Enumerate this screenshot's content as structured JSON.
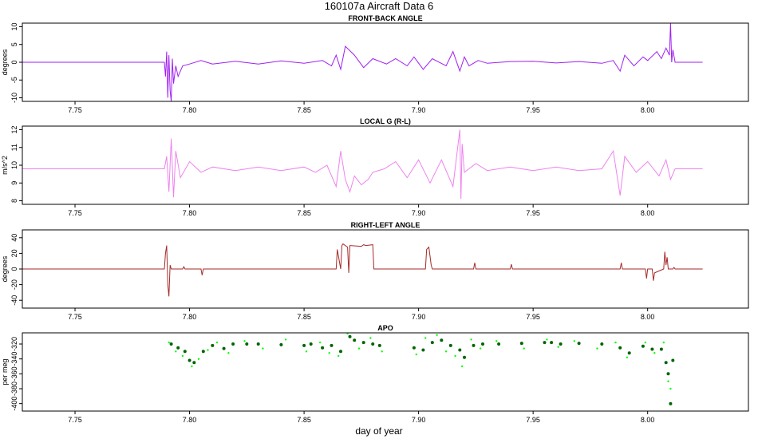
{
  "figure": {
    "title": "160107a   Aircraft Data 6",
    "xlabel": "day of year"
  },
  "chart_data": [
    {
      "type": "line",
      "title": "FRONT-BACK ANGLE",
      "ylabel": "degrees",
      "xlim": [
        7.727,
        8.044
      ],
      "ylim": [
        -11,
        11
      ],
      "xticks": [
        7.75,
        7.8,
        7.85,
        7.9,
        7.95,
        8.0
      ],
      "xtick_labels": [
        "7.75",
        "7.80",
        "7.85",
        "7.90",
        "7.95",
        "8.00"
      ],
      "yticks": [
        -10,
        -5,
        0,
        5,
        10
      ],
      "ytick_labels": [
        "-10",
        "-5",
        "0",
        "5",
        "10"
      ],
      "color": "#a020f0",
      "series": [
        {
          "x": [
            7.727,
            7.789,
            7.7895,
            7.79,
            7.7905,
            7.791,
            7.7915,
            7.792,
            7.7925,
            7.793,
            7.794,
            7.795,
            7.797,
            7.8,
            7.805,
            7.81,
            7.82,
            7.83,
            7.84,
            7.85,
            7.858,
            7.862,
            7.864,
            7.866,
            7.868,
            7.872,
            7.876,
            7.88,
            7.886,
            7.89,
            7.895,
            7.898,
            7.902,
            7.906,
            7.912,
            7.915,
            7.918,
            7.92,
            7.922,
            7.926,
            7.93,
            7.94,
            7.95,
            7.96,
            7.97,
            7.98,
            7.985,
            7.988,
            7.99,
            7.994,
            7.998,
            8.0,
            8.004,
            8.006,
            8.008,
            8.0095,
            8.01,
            8.0105,
            8.011,
            8.012,
            8.024
          ],
          "y": [
            0,
            0,
            -4,
            3,
            -10,
            2,
            -8,
            -11,
            1,
            -6,
            -1,
            -4,
            -1,
            -0.5,
            0.5,
            -0.5,
            0.3,
            -0.5,
            0.4,
            -0.3,
            0.5,
            -1,
            2,
            -2,
            4.5,
            2,
            -1.5,
            1,
            -0.5,
            1,
            -1,
            1.5,
            -2,
            1,
            -1,
            3,
            -2.5,
            1.5,
            -1,
            0.5,
            -0.3,
            0.2,
            0.3,
            -0.2,
            0.2,
            -0.3,
            0.5,
            -2.5,
            2,
            -1,
            1.5,
            0.5,
            3,
            1,
            4,
            2,
            11,
            0,
            3.5,
            0,
            0
          ]
        }
      ]
    },
    {
      "type": "line",
      "title": "LOCAL G (R-L)",
      "ylabel": "m/s^2",
      "xlim": [
        7.727,
        8.044
      ],
      "ylim": [
        7.8,
        12.2
      ],
      "xticks": [
        7.75,
        7.8,
        7.85,
        7.9,
        7.95,
        8.0
      ],
      "xtick_labels": [
        "7.75",
        "7.80",
        "7.85",
        "7.90",
        "7.95",
        "8.00"
      ],
      "yticks": [
        8,
        9,
        10,
        11,
        12
      ],
      "ytick_labels": [
        "8",
        "9",
        "10",
        "11",
        "12"
      ],
      "color": "#ee82ee",
      "series": [
        {
          "x": [
            7.727,
            7.789,
            7.79,
            7.791,
            7.792,
            7.793,
            7.794,
            7.796,
            7.8,
            7.805,
            7.81,
            7.82,
            7.83,
            7.84,
            7.85,
            7.855,
            7.86,
            7.864,
            7.866,
            7.868,
            7.87,
            7.872,
            7.875,
            7.878,
            7.88,
            7.885,
            7.89,
            7.895,
            7.9,
            7.905,
            7.91,
            7.915,
            7.918,
            7.9185,
            7.919,
            7.92,
            7.925,
            7.93,
            7.94,
            7.95,
            7.96,
            7.97,
            7.98,
            7.985,
            7.988,
            7.99,
            7.995,
            8.0,
            8.005,
            8.008,
            8.01,
            8.012,
            8.024
          ],
          "y": [
            9.8,
            9.8,
            10.5,
            8.5,
            11.5,
            8.2,
            10.8,
            9.3,
            10.2,
            9.6,
            9.9,
            9.7,
            9.9,
            9.7,
            9.9,
            9.6,
            10.0,
            8.8,
            10.8,
            9.2,
            8.5,
            9.4,
            8.9,
            9.2,
            9.6,
            9.8,
            10.2,
            9.3,
            10.3,
            9.0,
            10.3,
            8.8,
            12.0,
            8.1,
            11.2,
            9.6,
            10.1,
            9.7,
            9.9,
            9.7,
            9.9,
            9.7,
            9.8,
            10.8,
            8.3,
            10.5,
            9.6,
            10.2,
            9.4,
            10.3,
            9.2,
            9.8,
            9.8
          ]
        }
      ]
    },
    {
      "type": "line",
      "title": "RIGHT-LEFT ANGLE",
      "ylabel": "degrees",
      "xlim": [
        7.727,
        8.044
      ],
      "ylim": [
        -50,
        50
      ],
      "xticks": [
        7.75,
        7.8,
        7.85,
        7.9,
        7.95,
        8.0
      ],
      "xtick_labels": [
        "7.75",
        "7.80",
        "7.85",
        "7.90",
        "7.95",
        "8.00"
      ],
      "yticks": [
        -40,
        -20,
        0,
        20,
        40
      ],
      "ytick_labels": [
        "-40",
        "-20",
        "0",
        "20",
        "40"
      ],
      "color": "#a52a2a",
      "series": [
        {
          "x": [
            7.727,
            7.789,
            7.7895,
            7.79,
            7.7905,
            7.791,
            7.7915,
            7.792,
            7.797,
            7.7975,
            7.798,
            7.805,
            7.8055,
            7.806,
            7.864,
            7.8645,
            7.866,
            7.8665,
            7.867,
            7.869,
            7.8695,
            7.87,
            7.875,
            7.876,
            7.877,
            7.88,
            7.8805,
            7.881,
            7.903,
            7.9035,
            7.9045,
            7.9055,
            7.906,
            7.924,
            7.9245,
            7.925,
            7.94,
            7.9405,
            7.941,
            7.988,
            7.9885,
            7.989,
            7.999,
            7.9995,
            8.0,
            8.002,
            8.0025,
            8.003,
            8.007,
            8.0075,
            8.008,
            8.0085,
            8.009,
            8.011,
            8.0115,
            8.012,
            8.024
          ],
          "y": [
            0,
            0,
            20,
            30,
            -20,
            -35,
            5,
            0,
            0,
            3,
            0,
            0,
            -8,
            0,
            0,
            25,
            0,
            30,
            32,
            28,
            -5,
            30,
            29,
            31,
            30,
            31,
            0,
            0,
            0,
            25,
            28,
            5,
            0,
            0,
            8,
            0,
            0,
            6,
            0,
            0,
            8,
            0,
            0,
            -12,
            0,
            0,
            -15,
            -5,
            0,
            22,
            5,
            15,
            0,
            0,
            2,
            0,
            0
          ]
        }
      ]
    },
    {
      "type": "scatter",
      "title": "APO",
      "ylabel": "per meg",
      "xlim": [
        7.727,
        8.044
      ],
      "ylim": [
        -410,
        -305
      ],
      "xticks": [
        7.75,
        7.8,
        7.85,
        7.9,
        7.95,
        8.0
      ],
      "xtick_labels": [
        "7.75",
        "7.80",
        "7.85",
        "7.90",
        "7.95",
        "8.00"
      ],
      "yticks": [
        -320,
        -340,
        -360,
        -380,
        -400
      ],
      "ytick_labels": [
        "-320",
        "-340",
        "-360",
        "-380",
        "-400"
      ],
      "series": [
        {
          "name": "",
          "color": "#006400",
          "x": [
            7.792,
            7.795,
            7.798,
            7.8,
            7.802,
            7.806,
            7.81,
            7.815,
            7.819,
            7.825,
            7.83,
            7.84,
            7.85,
            7.853,
            7.858,
            7.862,
            7.866,
            7.87,
            7.872,
            7.876,
            7.88,
            7.883,
            7.898,
            7.902,
            7.906,
            7.91,
            7.914,
            7.918,
            7.92,
            7.924,
            7.928,
            7.935,
            7.945,
            7.955,
            7.958,
            7.962,
            7.97,
            7.98,
            7.988,
            7.992,
            7.998,
            8.002,
            8.006,
            8.008,
            8.009,
            8.01,
            8.011
          ],
          "y": [
            -320,
            -325,
            -330,
            -342,
            -345,
            -330,
            -322,
            -326,
            -320,
            -320,
            -320,
            -321,
            -322,
            -320,
            -325,
            -322,
            -330,
            -310,
            -315,
            -318,
            -320,
            -322,
            -325,
            -328,
            -318,
            -315,
            -322,
            -328,
            -338,
            -322,
            -320,
            -320,
            -319,
            -318,
            -318,
            -320,
            -319,
            -320,
            -325,
            -332,
            -323,
            -327,
            -327,
            -345,
            -360,
            -400,
            -342
          ]
        },
        {
          "name": "",
          "color": "#00ff00",
          "x": [
            7.791,
            7.794,
            7.797,
            7.801,
            7.804,
            7.808,
            7.812,
            7.817,
            7.824,
            7.832,
            7.842,
            7.851,
            7.857,
            7.861,
            7.865,
            7.869,
            7.874,
            7.879,
            7.884,
            7.899,
            7.903,
            7.908,
            7.912,
            7.916,
            7.919,
            7.923,
            7.927,
            7.934,
            7.946,
            7.956,
            7.961,
            7.968,
            7.978,
            7.986,
            7.991,
            7.999,
            8.003,
            8.007,
            8.009,
            8.01
          ],
          "y": [
            -318,
            -330,
            -336,
            -350,
            -340,
            -328,
            -318,
            -332,
            -316,
            -326,
            -314,
            -330,
            -318,
            -332,
            -336,
            -306,
            -326,
            -312,
            -330,
            -334,
            -312,
            -308,
            -330,
            -336,
            -350,
            -314,
            -326,
            -316,
            -326,
            -314,
            -324,
            -316,
            -326,
            -318,
            -338,
            -318,
            -332,
            -318,
            -370,
            -380
          ]
        }
      ]
    }
  ]
}
